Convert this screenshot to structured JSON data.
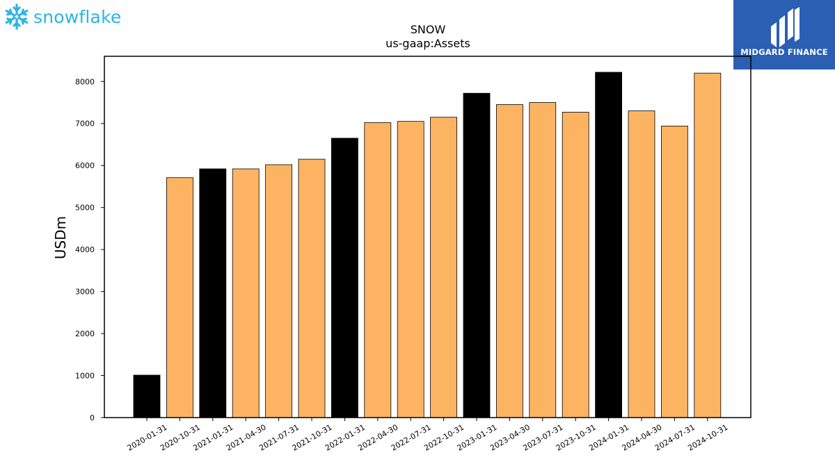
{
  "logos": {
    "left_text": "snowflake",
    "right_text": "MIDGARD FINANCE"
  },
  "chart_data": {
    "type": "bar",
    "title": "SNOW",
    "subtitle": "us-gaap:Assets",
    "xlabel": "",
    "ylabel": "USDm",
    "ylim": [
      0,
      8600
    ],
    "yticks": [
      0,
      1000,
      2000,
      3000,
      4000,
      5000,
      6000,
      7000,
      8000
    ],
    "grid": false,
    "colors": {
      "annual": "#000000",
      "quarterly": "#fdb462"
    },
    "categories": [
      "2020-01-31",
      "2020-10-31",
      "2021-01-31",
      "2021-04-30",
      "2021-07-31",
      "2021-10-31",
      "2022-01-31",
      "2022-04-30",
      "2022-07-31",
      "2022-10-31",
      "2023-01-31",
      "2023-04-30",
      "2023-07-31",
      "2023-10-31",
      "2024-01-31",
      "2024-04-30",
      "2024-07-31",
      "2024-10-31"
    ],
    "values": [
      1010,
      5710,
      5920,
      5920,
      6020,
      6150,
      6650,
      7020,
      7050,
      7150,
      7720,
      7450,
      7500,
      7270,
      8220,
      7300,
      6940,
      8200
    ],
    "period_type": [
      "annual",
      "quarterly",
      "annual",
      "quarterly",
      "quarterly",
      "quarterly",
      "annual",
      "quarterly",
      "quarterly",
      "quarterly",
      "annual",
      "quarterly",
      "quarterly",
      "quarterly",
      "annual",
      "quarterly",
      "quarterly",
      "quarterly"
    ]
  }
}
